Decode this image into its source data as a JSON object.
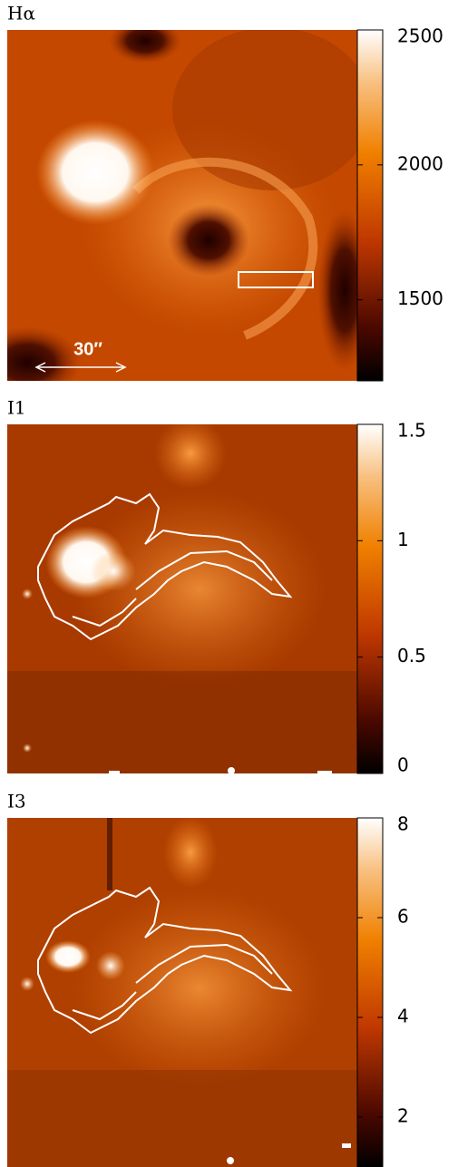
{
  "chart_data": [
    {
      "type": "image",
      "title": "Hα",
      "annotation": "30″",
      "ylim": [
        1200,
        2500
      ],
      "yticks": [
        1500,
        2000,
        2500
      ]
    },
    {
      "type": "image",
      "title": "I1",
      "ylim": [
        0,
        1.5
      ],
      "yticks": [
        0,
        0.5,
        1,
        1.5
      ]
    },
    {
      "type": "image",
      "title": "I3",
      "ylim": [
        1,
        8
      ],
      "yticks": [
        2,
        4,
        6,
        8
      ]
    }
  ]
}
